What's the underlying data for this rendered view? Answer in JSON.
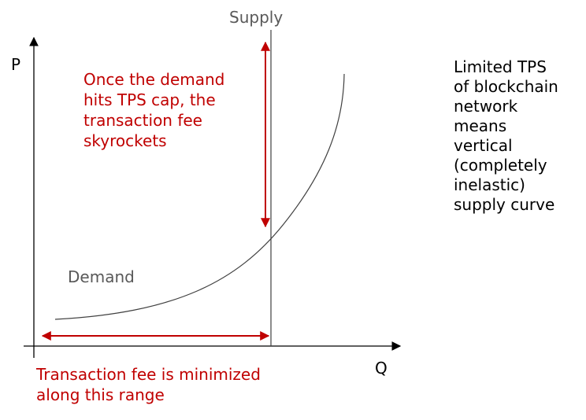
{
  "axes": {
    "y_label": "P",
    "x_label": "Q"
  },
  "curves": {
    "supply_label": "Supply",
    "demand_label": "Demand"
  },
  "annotations": {
    "cap_lines": [
      "Once the demand",
      "hits TPS cap, the",
      "transaction fee",
      "skyrockets"
    ],
    "range_lines": [
      "Transaction fee is minimized",
      "along this range"
    ],
    "side_note_lines": [
      "Limited TPS",
      "of blockchain",
      "network",
      "means",
      "vertical",
      "(completely",
      "inelastic)",
      "supply curve"
    ]
  },
  "colors": {
    "axis": "#000000",
    "curve": "#404040",
    "arrow": "#c00000",
    "red_text": "#c00000",
    "gray_text": "#595959"
  },
  "icons": {
    "arrowheads": "arrow-icon"
  }
}
